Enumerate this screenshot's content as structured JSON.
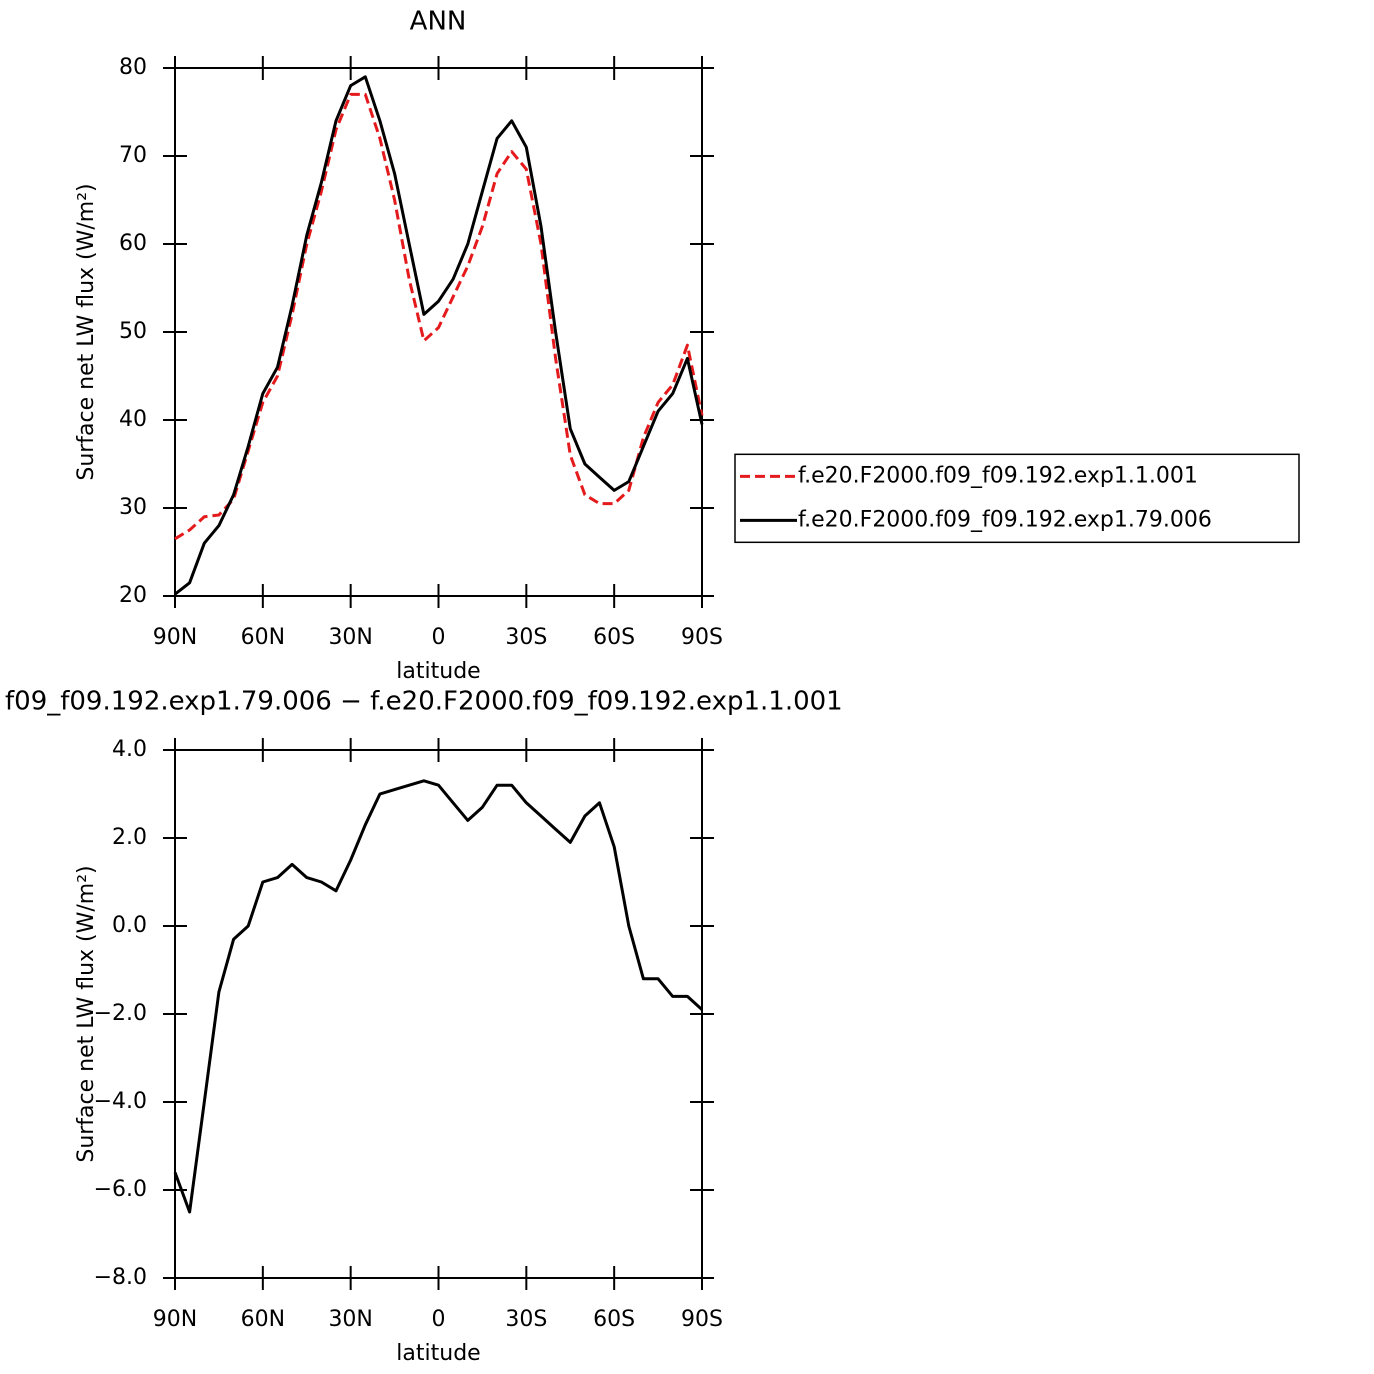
{
  "chart_data": [
    {
      "type": "line",
      "title": "ANN",
      "xlabel": "latitude",
      "ylabel": "Surface net LW flux (W/m²)",
      "x": [
        90,
        85,
        80,
        75,
        70,
        65,
        60,
        55,
        50,
        45,
        40,
        35,
        30,
        25,
        20,
        15,
        10,
        5,
        0,
        -5,
        -10,
        -15,
        -20,
        -25,
        -30,
        -35,
        -40,
        -45,
        -50,
        -55,
        -60,
        -65,
        -70,
        -75,
        -80,
        -85,
        -90
      ],
      "xlim": [
        90,
        -90
      ],
      "xticks": [
        {
          "value": 90,
          "label": "90N"
        },
        {
          "value": 60,
          "label": "60N"
        },
        {
          "value": 30,
          "label": "30N"
        },
        0,
        {
          "value": -30,
          "label": "30S"
        },
        {
          "value": -60,
          "label": "60S"
        },
        {
          "value": -90,
          "label": "90S"
        }
      ],
      "ylim": [
        20,
        80
      ],
      "yticks": [
        20,
        30,
        40,
        50,
        60,
        70,
        80
      ],
      "legend": "right",
      "series": [
        {
          "name": "f.e20.F2000.f09_f09.192.exp1.1.001",
          "color": "#e41a1c",
          "linestyle": "dashed",
          "values": [
            26.5,
            27.5,
            29,
            29.2,
            31,
            36.5,
            42,
            45,
            52,
            60,
            66,
            73,
            77,
            77,
            72,
            65,
            56,
            49,
            50.5,
            54,
            57.5,
            62,
            68,
            70.5,
            68.5,
            60,
            47,
            36,
            31.5,
            30.5,
            30.5,
            32,
            38,
            42,
            44,
            48.5,
            40.5
          ]
        },
        {
          "name": "f.e20.F2000.f09_f09.192.exp1.79.006",
          "color": "#000000",
          "linestyle": "solid",
          "values": [
            20.2,
            21.5,
            26,
            28,
            31.5,
            37,
            43,
            46,
            53,
            61,
            67,
            74,
            78,
            79,
            74,
            68,
            60,
            52,
            53.5,
            56,
            60,
            66,
            72,
            74,
            71,
            62,
            50,
            39,
            35,
            33.5,
            32,
            33,
            37,
            41,
            43,
            47,
            39.5
          ]
        }
      ]
    },
    {
      "type": "line",
      "title": "f09_f09.192.exp1.79.006 − f.e20.F2000.f09_f09.192.exp1.1.001",
      "xlabel": "latitude",
      "ylabel": "Surface net LW flux (W/m²)",
      "x": [
        90,
        85,
        80,
        75,
        70,
        65,
        60,
        55,
        50,
        45,
        40,
        35,
        30,
        25,
        20,
        15,
        10,
        5,
        0,
        -5,
        -10,
        -15,
        -20,
        -25,
        -30,
        -35,
        -40,
        -45,
        -50,
        -55,
        -60,
        -65,
        -70,
        -75,
        -80,
        -85,
        -90
      ],
      "xlim": [
        90,
        -90
      ],
      "xticks": [
        {
          "value": 90,
          "label": "90N"
        },
        {
          "value": 60,
          "label": "60N"
        },
        {
          "value": 30,
          "label": "30N"
        },
        0,
        {
          "value": -30,
          "label": "30S"
        },
        {
          "value": -60,
          "label": "60S"
        },
        {
          "value": -90,
          "label": "90S"
        }
      ],
      "ylim": [
        -8,
        4
      ],
      "yticks": [
        {
          "value": -8,
          "label": "−8.0"
        },
        {
          "value": -6,
          "label": "−6.0"
        },
        {
          "value": -4,
          "label": "−4.0"
        },
        {
          "value": -2,
          "label": "−2.0"
        },
        {
          "value": 0,
          "label": "0.0"
        },
        {
          "value": 2,
          "label": "2.0"
        },
        {
          "value": 4,
          "label": "4.0"
        }
      ],
      "series": [
        {
          "color": "#000000",
          "linestyle": "solid",
          "values": [
            -5.6,
            -6.5,
            -4,
            -1.5,
            -0.3,
            0,
            1.0,
            1.1,
            1.4,
            1.1,
            1.0,
            0.8,
            1.5,
            2.3,
            3.0,
            3.1,
            3.2,
            3.3,
            3.2,
            2.8,
            2.4,
            2.7,
            3.2,
            3.2,
            2.8,
            2.5,
            2.2,
            1.9,
            2.5,
            2.8,
            1.8,
            0,
            -1.2,
            -1.2,
            -1.6,
            -1.6,
            -1.9
          ]
        }
      ]
    }
  ]
}
